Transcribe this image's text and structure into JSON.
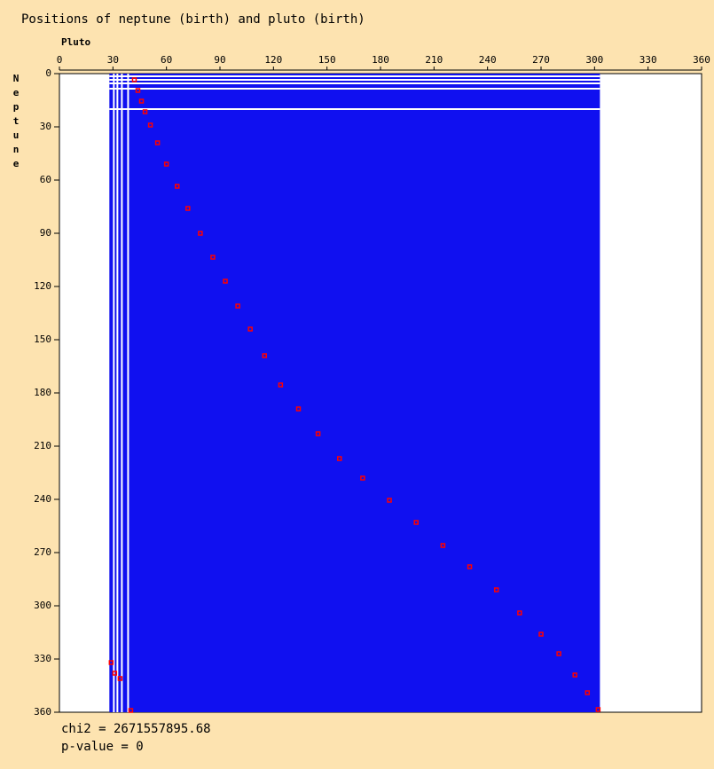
{
  "chart_data": {
    "type": "scatter",
    "title": "Positions of neptune (birth) and pluto (birth)",
    "x_label": "Pluto",
    "y_label": "Neptune",
    "xlim": [
      0,
      360
    ],
    "ylim": [
      0,
      360
    ],
    "xticks": [
      0,
      30,
      60,
      90,
      120,
      150,
      180,
      210,
      240,
      270,
      300,
      330,
      360
    ],
    "yticks": [
      0,
      30,
      60,
      90,
      120,
      150,
      180,
      210,
      240,
      270,
      300,
      330,
      360
    ],
    "region": {
      "x": [
        28,
        303
      ],
      "y": [
        0,
        360
      ],
      "color": "#1010f0"
    },
    "gap_x": [
      30.5,
      32.5,
      35,
      38.5
    ],
    "gap_y": [
      1.5,
      3.5,
      5.5,
      8.5,
      20
    ],
    "color": "#ff0000",
    "x": [
      42,
      44,
      46,
      48,
      51,
      55,
      60,
      66,
      72,
      79,
      86,
      93,
      100,
      107,
      115,
      124,
      134,
      145,
      157,
      170,
      185,
      200,
      215,
      230,
      245,
      258,
      270,
      280,
      289,
      296,
      302,
      29,
      31,
      34,
      40
    ],
    "values": [
      3.5,
      9.5,
      15.5,
      21.5,
      29,
      39,
      51,
      63.5,
      76,
      90,
      103.5,
      117,
      131,
      144,
      159,
      175.5,
      189,
      203,
      217,
      228,
      240.5,
      253,
      266,
      278,
      291,
      304,
      316,
      327,
      339,
      349,
      358.5,
      332,
      338,
      341,
      359
    ],
    "stats": [
      "chi2 = 2671557895.68",
      "p-value = 0"
    ]
  }
}
